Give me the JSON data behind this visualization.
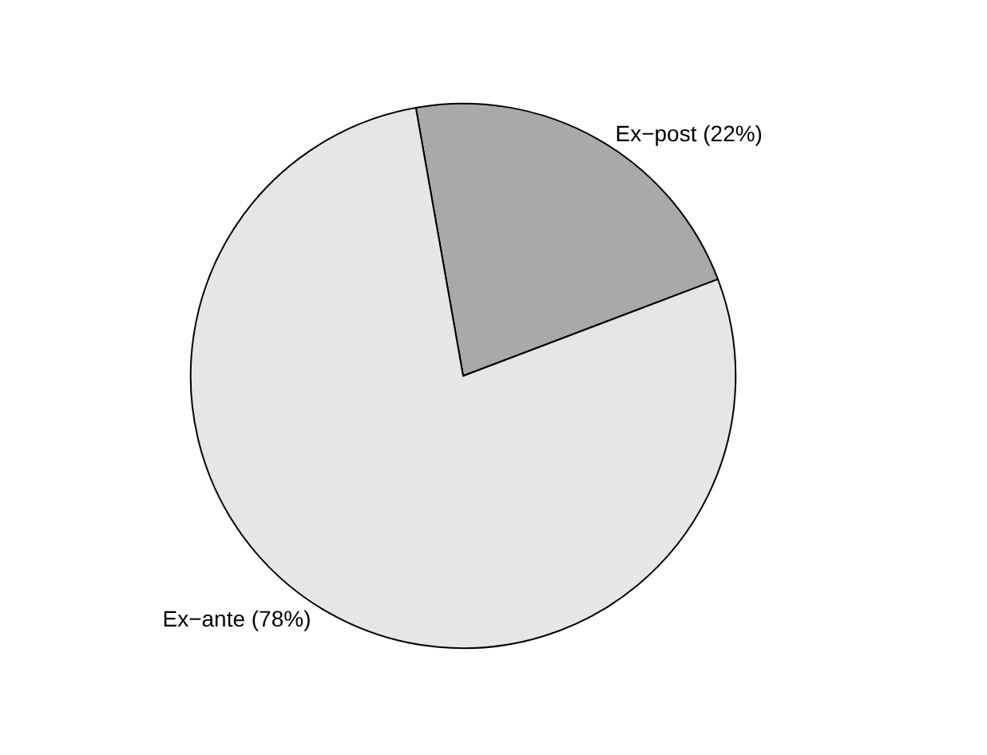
{
  "chart_data": {
    "type": "pie",
    "categories": [
      "Ex−post (22%)",
      "Ex−ante (78%)"
    ],
    "values": [
      22,
      78
    ],
    "colors": [
      "#a9a9a9",
      "#e6e6e6"
    ],
    "legend": false
  }
}
